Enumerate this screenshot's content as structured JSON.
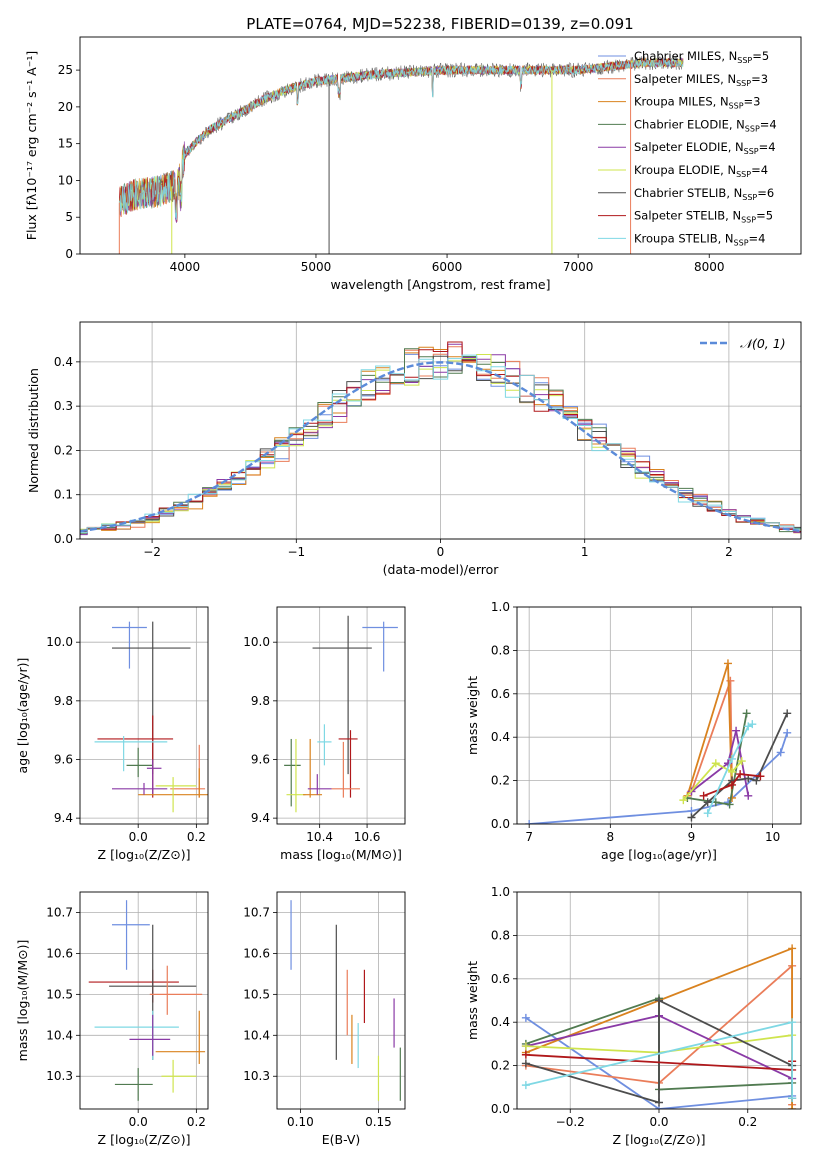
{
  "title": "PLATE=0764, MJD=52238, FIBERID=0139, z=0.091",
  "models": [
    {
      "name": "Chabrier MILES",
      "nssp": "5",
      "color": "#6f8fe0"
    },
    {
      "name": "Salpeter MILES",
      "nssp": "3",
      "color": "#ea7d5a"
    },
    {
      "name": "Kroupa MILES",
      "nssp": "3",
      "color": "#d9821f"
    },
    {
      "name": "Chabrier ELODIE",
      "nssp": "4",
      "color": "#517b51"
    },
    {
      "name": "Salpeter ELODIE",
      "nssp": "4",
      "color": "#8a3aa6"
    },
    {
      "name": "Kroupa ELODIE",
      "nssp": "4",
      "color": "#cfe44e"
    },
    {
      "name": "Chabrier STELIB",
      "nssp": "6",
      "color": "#4d4d4d"
    },
    {
      "name": "Salpeter STELIB",
      "nssp": "5",
      "color": "#b0181b"
    },
    {
      "name": "Kroupa STELIB",
      "nssp": "4",
      "color": "#7fd8e4"
    }
  ],
  "chart_data": [
    {
      "id": "spectrum",
      "type": "line",
      "xlabel": "wavelength [Angstrom, rest frame]",
      "ylabel": "Flux [fλ10⁻¹⁷ erg cm⁻² s⁻¹ A⁻¹]",
      "xlim": [
        3200,
        8700
      ],
      "ylim": [
        0,
        29.5
      ],
      "xticks": [
        4000,
        5000,
        6000,
        7000,
        8000
      ],
      "yticks": [
        0,
        5,
        10,
        15,
        20,
        25
      ],
      "grid": false,
      "legend": "right",
      "continuum": {
        "x": [
          3500,
          3600,
          3800,
          3950,
          4000,
          4100,
          4200,
          4400,
          4600,
          4800,
          5000,
          5500,
          6000,
          6500,
          7000,
          7500,
          7800
        ],
        "y": [
          7,
          8,
          8.5,
          9.5,
          13.5,
          15.5,
          17,
          19,
          21,
          22.5,
          23.5,
          24.5,
          25,
          25,
          25,
          26,
          26
        ]
      },
      "dips": [
        {
          "x": 3500,
          "y": 0
        },
        {
          "x": 3900,
          "y": 0
        },
        {
          "x": 5100,
          "y": 0
        },
        {
          "x": 6800,
          "y": 0
        },
        {
          "x": 7400,
          "y": 0
        }
      ]
    },
    {
      "id": "residuals",
      "type": "step",
      "xlabel": "(data-model)/error",
      "ylabel": "Normed distribution",
      "xlim": [
        -2.5,
        2.5
      ],
      "ylim": [
        0,
        0.49
      ],
      "xticks": [
        -2,
        -1,
        0,
        1,
        2
      ],
      "yticks": [
        0.0,
        0.1,
        0.2,
        0.3,
        0.4
      ],
      "grid": true,
      "legend": "top-right",
      "reference": {
        "label": "𝒩(0, 1)",
        "mu": 0,
        "sigma": 1,
        "color": "#5b8bd9"
      },
      "bin_width": 0.1
    },
    {
      "id": "age-vs-Z",
      "type": "errorbar",
      "xlabel": "Z [log₁₀(Z/Z⊙)]",
      "ylabel": "age  [log₁₀(age/yr)]",
      "xlim": [
        -0.2,
        0.24
      ],
      "ylim": [
        9.38,
        10.12
      ],
      "xticks": [
        0.0,
        0.2
      ],
      "yticks": [
        9.4,
        9.6,
        9.8,
        10.0
      ],
      "grid": true,
      "points": [
        {
          "x": -0.03,
          "y": 10.05,
          "xl": -0.09,
          "xh": 0.03,
          "yl": 9.91,
          "yh": 10.07,
          "c": 0
        },
        {
          "x": 0.05,
          "y": 9.98,
          "xl": -0.09,
          "xh": 0.18,
          "yl": 9.55,
          "yh": 10.07,
          "c": 6
        },
        {
          "x": 0.05,
          "y": 9.67,
          "xl": -0.14,
          "xh": 0.12,
          "yl": 9.47,
          "yh": 9.75,
          "c": 7
        },
        {
          "x": -0.05,
          "y": 9.66,
          "xl": -0.15,
          "xh": 0.1,
          "yl": 9.56,
          "yh": 9.68,
          "c": 8
        },
        {
          "x": 0.0,
          "y": 9.58,
          "xl": -0.04,
          "xh": 0.05,
          "yl": 9.54,
          "yh": 9.64,
          "c": 3
        },
        {
          "x": 0.05,
          "y": 9.57,
          "xl": 0.03,
          "xh": 0.08,
          "yl": 9.48,
          "yh": 9.6,
          "c": 4
        },
        {
          "x": 0.21,
          "y": 9.5,
          "xl": 0.11,
          "xh": 0.23,
          "yl": 9.47,
          "yh": 9.65,
          "c": 1
        },
        {
          "x": 0.21,
          "y": 9.48,
          "xl": 0.0,
          "xh": 0.24,
          "yl": 9.47,
          "yh": 9.57,
          "c": 2
        },
        {
          "x": 0.12,
          "y": 9.51,
          "xl": 0.06,
          "xh": 0.2,
          "yl": 9.42,
          "yh": 9.54,
          "c": 5
        },
        {
          "x": 0.02,
          "y": 9.5,
          "xl": -0.09,
          "xh": 0.1,
          "yl": 9.48,
          "yh": 9.52,
          "c": 4
        }
      ]
    },
    {
      "id": "age-vs-mass",
      "type": "errorbar",
      "xlabel": "mass [log₁₀(M/M⊙)]",
      "ylabel": "",
      "xlim": [
        10.22,
        10.76
      ],
      "ylim": [
        9.38,
        10.12
      ],
      "xticks": [
        10.4,
        10.6
      ],
      "yticks": [
        9.4,
        9.6,
        9.8,
        10.0
      ],
      "grid": true,
      "points": [
        {
          "x": 10.67,
          "y": 10.05,
          "xl": 10.58,
          "xh": 10.73,
          "yl": 9.9,
          "yh": 10.07,
          "c": 0
        },
        {
          "x": 10.52,
          "y": 9.98,
          "xl": 10.37,
          "xh": 10.62,
          "yl": 9.55,
          "yh": 10.09,
          "c": 6
        },
        {
          "x": 10.53,
          "y": 9.67,
          "xl": 10.48,
          "xh": 10.56,
          "yl": 9.47,
          "yh": 9.7,
          "c": 7
        },
        {
          "x": 10.42,
          "y": 9.66,
          "xl": 10.39,
          "xh": 10.45,
          "yl": 9.58,
          "yh": 9.72,
          "c": 8
        },
        {
          "x": 10.28,
          "y": 9.58,
          "xl": 10.25,
          "xh": 10.32,
          "yl": 9.44,
          "yh": 9.67,
          "c": 3
        },
        {
          "x": 10.3,
          "y": 9.48,
          "xl": 10.26,
          "xh": 10.34,
          "yl": 9.42,
          "yh": 9.67,
          "c": 5
        },
        {
          "x": 10.5,
          "y": 9.5,
          "xl": 10.45,
          "xh": 10.57,
          "yl": 9.47,
          "yh": 9.66,
          "c": 1
        },
        {
          "x": 10.36,
          "y": 9.48,
          "xl": 10.33,
          "xh": 10.41,
          "yl": 9.47,
          "yh": 9.67,
          "c": 2
        },
        {
          "x": 10.39,
          "y": 9.5,
          "xl": 10.35,
          "xh": 10.45,
          "yl": 9.48,
          "yh": 9.55,
          "c": 4
        }
      ]
    },
    {
      "id": "weight-vs-age",
      "type": "line",
      "xlabel": "age  [log₁₀(age/yr)]",
      "ylabel": "mass weight",
      "xlim": [
        6.85,
        10.35
      ],
      "ylim": [
        0,
        1.0
      ],
      "xticks": [
        7,
        8,
        9,
        10
      ],
      "yticks": [
        0.0,
        0.2,
        0.4,
        0.6,
        0.8,
        1.0
      ],
      "grid": true,
      "series": [
        {
          "c": 0,
          "x": [
            7.0,
            9.0,
            9.45,
            10.1,
            10.18
          ],
          "y": [
            0.0,
            0.06,
            0.1,
            0.33,
            0.42
          ]
        },
        {
          "c": 1,
          "x": [
            9.0,
            9.48,
            9.5
          ],
          "y": [
            0.15,
            0.66,
            0.2
          ]
        },
        {
          "c": 2,
          "x": [
            8.95,
            9.45,
            9.5
          ],
          "y": [
            0.13,
            0.74,
            0.12
          ]
        },
        {
          "c": 3,
          "x": [
            8.95,
            9.3,
            9.47,
            9.68
          ],
          "y": [
            0.12,
            0.1,
            0.09,
            0.51
          ]
        },
        {
          "c": 4,
          "x": [
            9.0,
            9.45,
            9.55,
            9.7
          ],
          "y": [
            0.15,
            0.28,
            0.43,
            0.13
          ]
        },
        {
          "c": 5,
          "x": [
            8.9,
            9.3,
            9.5,
            9.62
          ],
          "y": [
            0.11,
            0.28,
            0.24,
            0.29
          ]
        },
        {
          "c": 6,
          "x": [
            9.0,
            9.2,
            9.5,
            9.7,
            9.8,
            10.18
          ],
          "y": [
            0.03,
            0.1,
            0.2,
            0.21,
            0.2,
            0.51
          ]
        },
        {
          "c": 7,
          "x": [
            9.15,
            9.5,
            9.6,
            9.85
          ],
          "y": [
            0.13,
            0.18,
            0.23,
            0.22
          ]
        },
        {
          "c": 8,
          "x": [
            9.2,
            9.5,
            9.7,
            9.75
          ],
          "y": [
            0.05,
            0.3,
            0.45,
            0.46
          ]
        }
      ]
    },
    {
      "id": "mass-vs-Z",
      "type": "errorbar",
      "xlabel": "Z [log₁₀(Z/Z⊙)]",
      "ylabel": "mass [log₁₀(M/M⊙)]",
      "xlim": [
        -0.2,
        0.24
      ],
      "ylim": [
        10.22,
        10.75
      ],
      "xticks": [
        0.0,
        0.2
      ],
      "yticks": [
        10.3,
        10.4,
        10.5,
        10.6,
        10.7
      ],
      "grid": true,
      "points": [
        {
          "x": -0.04,
          "y": 10.67,
          "xl": -0.09,
          "xh": 0.04,
          "yl": 10.56,
          "yh": 10.73,
          "c": 0
        },
        {
          "x": 0.05,
          "y": 10.53,
          "xl": -0.17,
          "xh": 0.14,
          "yl": 10.48,
          "yh": 10.56,
          "c": 7
        },
        {
          "x": 0.05,
          "y": 10.52,
          "xl": -0.1,
          "xh": 0.2,
          "yl": 10.34,
          "yh": 10.67,
          "c": 6
        },
        {
          "x": 0.1,
          "y": 10.5,
          "xl": 0.04,
          "xh": 0.22,
          "yl": 10.45,
          "yh": 10.57,
          "c": 1
        },
        {
          "x": 0.05,
          "y": 10.42,
          "xl": -0.15,
          "xh": 0.14,
          "yl": 10.34,
          "yh": 10.46,
          "c": 8
        },
        {
          "x": 0.05,
          "y": 10.39,
          "xl": -0.03,
          "xh": 0.11,
          "yl": 10.35,
          "yh": 10.45,
          "c": 4
        },
        {
          "x": 0.21,
          "y": 10.36,
          "xl": 0.06,
          "xh": 0.23,
          "yl": 10.33,
          "yh": 10.46,
          "c": 2
        },
        {
          "x": 0.12,
          "y": 10.3,
          "xl": 0.08,
          "xh": 0.2,
          "yl": 10.26,
          "yh": 10.34,
          "c": 5
        },
        {
          "x": 0.0,
          "y": 10.28,
          "xl": -0.08,
          "xh": 0.05,
          "yl": 10.24,
          "yh": 10.32,
          "c": 3
        }
      ]
    },
    {
      "id": "mass-vs-ebv",
      "type": "errorbar",
      "xlabel": "E(B-V)",
      "ylabel": "",
      "xlim": [
        0.085,
        0.167
      ],
      "ylim": [
        10.22,
        10.75
      ],
      "xticks": [
        0.1,
        0.15
      ],
      "yticks": [
        10.3,
        10.4,
        10.5,
        10.6,
        10.7
      ],
      "grid": true,
      "points": [
        {
          "x": 0.094,
          "y": 10.64,
          "xl": 0.094,
          "xh": 0.094,
          "yl": 10.56,
          "yh": 10.73,
          "c": 0
        },
        {
          "x": 0.123,
          "y": 10.5,
          "xl": 0.123,
          "xh": 0.123,
          "yl": 10.34,
          "yh": 10.67,
          "c": 6
        },
        {
          "x": 0.13,
          "y": 10.48,
          "xl": 0.13,
          "xh": 0.13,
          "yl": 10.4,
          "yh": 10.56,
          "c": 1
        },
        {
          "x": 0.133,
          "y": 10.38,
          "xl": 0.133,
          "xh": 0.133,
          "yl": 10.33,
          "yh": 10.45,
          "c": 2
        },
        {
          "x": 0.137,
          "y": 10.37,
          "xl": 0.137,
          "xh": 0.137,
          "yl": 10.32,
          "yh": 10.43,
          "c": 8
        },
        {
          "x": 0.141,
          "y": 10.5,
          "xl": 0.141,
          "xh": 0.141,
          "yl": 10.43,
          "yh": 10.56,
          "c": 7
        },
        {
          "x": 0.15,
          "y": 10.3,
          "xl": 0.15,
          "xh": 0.15,
          "yl": 10.24,
          "yh": 10.35,
          "c": 5
        },
        {
          "x": 0.16,
          "y": 10.43,
          "xl": 0.16,
          "xh": 0.16,
          "yl": 10.37,
          "yh": 10.49,
          "c": 4
        },
        {
          "x": 0.164,
          "y": 10.3,
          "xl": 0.164,
          "xh": 0.164,
          "yl": 10.24,
          "yh": 10.37,
          "c": 3
        }
      ]
    },
    {
      "id": "weight-vs-Z",
      "type": "line",
      "xlabel": "Z [log₁₀(Z/Z⊙)]",
      "ylabel": "mass weight",
      "xlim": [
        -0.32,
        0.32
      ],
      "ylim": [
        0,
        1.0
      ],
      "xticks": [
        -0.2,
        0.0,
        0.2
      ],
      "yticks": [
        0.0,
        0.2,
        0.4,
        0.6,
        0.8,
        1.0
      ],
      "grid": true,
      "series": [
        {
          "c": 0,
          "x": [
            -0.3,
            0.0,
            0.3
          ],
          "y": [
            0.42,
            0.0,
            0.06
          ]
        },
        {
          "c": 1,
          "x": [
            -0.3,
            0.0,
            0.3,
            0.3
          ],
          "y": [
            0.2,
            0.12,
            0.66,
            0.02
          ]
        },
        {
          "c": 2,
          "x": [
            -0.3,
            0.0,
            0.3,
            0.3
          ],
          "y": [
            0.26,
            0.5,
            0.74,
            0.0
          ]
        },
        {
          "c": 3,
          "x": [
            -0.3,
            0.0,
            0.0,
            0.3
          ],
          "y": [
            0.3,
            0.51,
            0.09,
            0.12
          ]
        },
        {
          "c": 4,
          "x": [
            -0.3,
            0.0,
            0.3
          ],
          "y": [
            0.29,
            0.43,
            0.14
          ]
        },
        {
          "c": 5,
          "x": [
            -0.3,
            0.0,
            0.3
          ],
          "y": [
            0.29,
            0.26,
            0.34
          ]
        },
        {
          "c": 6,
          "x": [
            -0.3,
            0.0,
            0.0,
            0.3,
            0.3
          ],
          "y": [
            0.21,
            0.03,
            0.5,
            0.2,
            0.05
          ]
        },
        {
          "c": 7,
          "x": [
            -0.3,
            0.3,
            0.3
          ],
          "y": [
            0.25,
            0.18,
            0.22
          ]
        },
        {
          "c": 8,
          "x": [
            -0.3,
            0.3,
            0.3
          ],
          "y": [
            0.11,
            0.4,
            0.05
          ]
        }
      ]
    }
  ]
}
